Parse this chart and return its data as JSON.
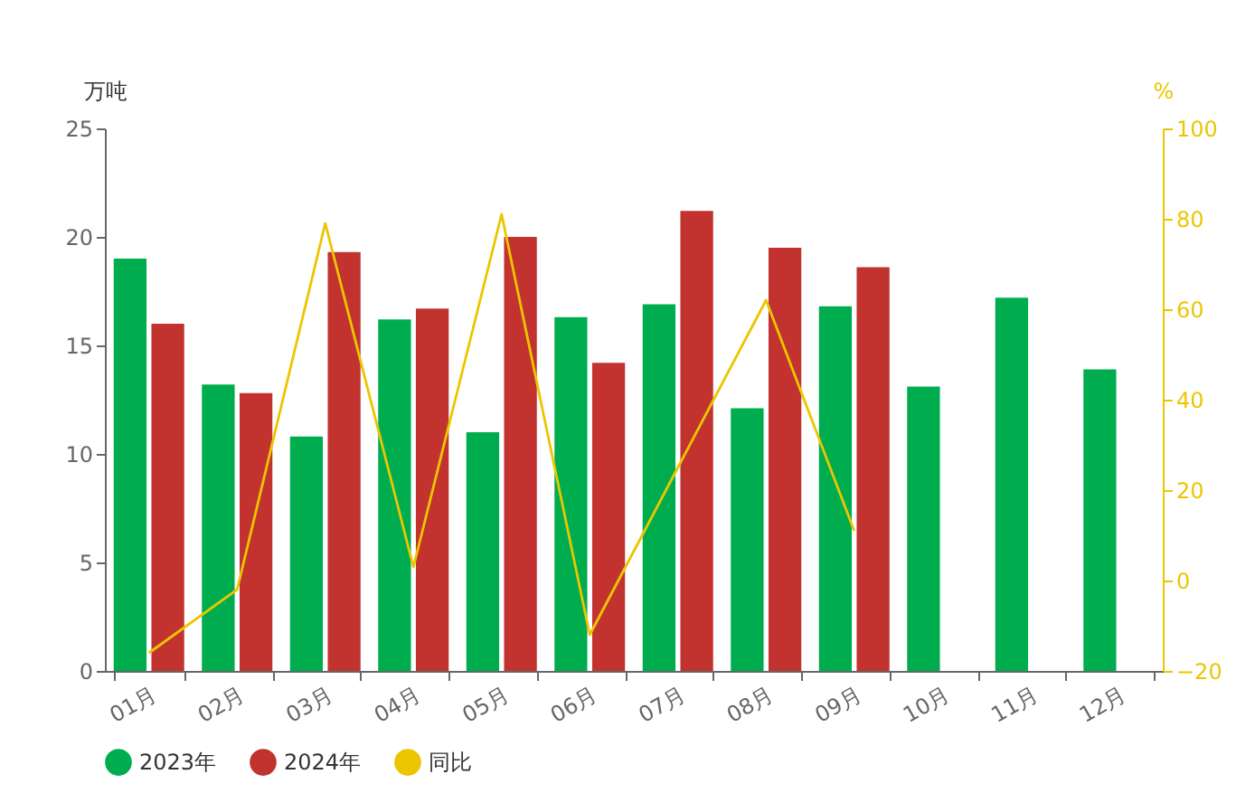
{
  "chart_data": {
    "type": "bar",
    "ylabel": "万吨",
    "y2label": "%",
    "categories": [
      "01月",
      "02月",
      "03月",
      "04月",
      "05月",
      "06月",
      "07月",
      "08月",
      "09月",
      "10月",
      "11月",
      "12月"
    ],
    "series": [
      {
        "name": "2023年",
        "color": "#00ad4e",
        "values": [
          19.0,
          13.2,
          10.8,
          16.2,
          11.0,
          16.3,
          16.9,
          12.1,
          16.8,
          13.1,
          17.2,
          13.9
        ]
      },
      {
        "name": "2024年",
        "color": "#c23330",
        "values": [
          16.0,
          12.8,
          19.3,
          16.7,
          20.0,
          14.2,
          21.2,
          19.5,
          18.6,
          null,
          null,
          null
        ]
      },
      {
        "name": "同比",
        "type": "line",
        "axis": "y2",
        "color": "#ebc600",
        "values": [
          -16,
          -2,
          79,
          3,
          81,
          -12,
          25,
          62,
          11,
          null,
          null,
          null
        ]
      }
    ],
    "ylim": [
      0,
      25
    ],
    "yticks": [
      0,
      5,
      10,
      15,
      20,
      25
    ],
    "y2lim": [
      -20,
      100
    ],
    "y2ticks": [
      -20,
      0,
      20,
      40,
      60,
      80,
      100
    ],
    "grid": false,
    "legend": "bottom"
  }
}
